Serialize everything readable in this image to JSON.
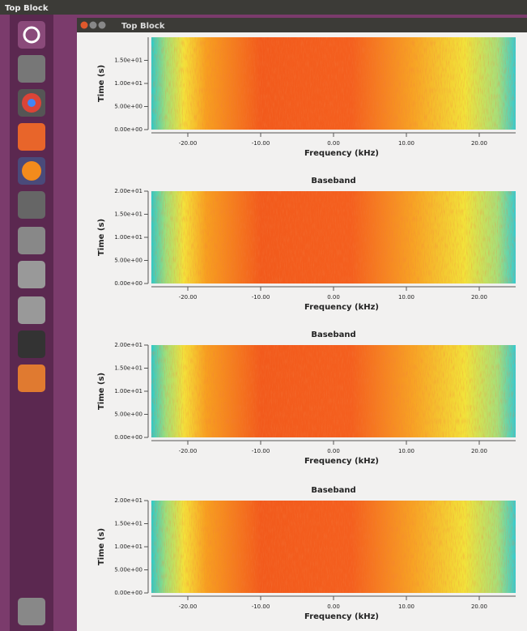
{
  "top_bar": {
    "title": "Top Block"
  },
  "window": {
    "title": "Top Block"
  },
  "plots": [
    {
      "x_label": "Frequency (kHz)",
      "y_label": "Time (s)",
      "xlim": [
        -25,
        25
      ],
      "ylim": [
        0,
        20
      ],
      "xticks": [
        {
          "value": -20,
          "label": "-20.00"
        },
        {
          "value": -10,
          "label": "-10.00"
        },
        {
          "value": 0,
          "label": "0.00"
        },
        {
          "value": 10,
          "label": "10.00"
        },
        {
          "value": 20,
          "label": "20.00"
        }
      ],
      "yticks": [
        {
          "value": 0,
          "label": "0.00e+00"
        },
        {
          "value": 5,
          "label": "5.00e+00"
        },
        {
          "value": 10,
          "label": "1.00e+01"
        },
        {
          "value": 15,
          "label": "1.50e+01"
        }
      ]
    },
    {
      "title": "Baseband",
      "x_label": "Frequency (kHz)",
      "y_label": "Time (s)",
      "xlim": [
        -25,
        25
      ],
      "ylim": [
        0,
        20
      ],
      "xticks": [
        {
          "value": -20,
          "label": "-20.00"
        },
        {
          "value": -10,
          "label": "-10.00"
        },
        {
          "value": 0,
          "label": "0.00"
        },
        {
          "value": 10,
          "label": "10.00"
        },
        {
          "value": 20,
          "label": "20.00"
        }
      ],
      "yticks": [
        {
          "value": 0,
          "label": "0.00e+00"
        },
        {
          "value": 5,
          "label": "5.00e+00"
        },
        {
          "value": 10,
          "label": "1.00e+01"
        },
        {
          "value": 15,
          "label": "1.50e+01"
        },
        {
          "value": 20,
          "label": "2.00e+01"
        }
      ]
    },
    {
      "title": "Baseband",
      "x_label": "Frequency (kHz)",
      "y_label": "Time (s)",
      "xlim": [
        -25,
        25
      ],
      "ylim": [
        0,
        20
      ],
      "xticks": [
        {
          "value": -20,
          "label": "-20.00"
        },
        {
          "value": -10,
          "label": "-10.00"
        },
        {
          "value": 0,
          "label": "0.00"
        },
        {
          "value": 10,
          "label": "10.00"
        },
        {
          "value": 20,
          "label": "20.00"
        }
      ],
      "yticks": [
        {
          "value": 0,
          "label": "0.00e+00"
        },
        {
          "value": 5,
          "label": "5.00e+00"
        },
        {
          "value": 10,
          "label": "1.00e+01"
        },
        {
          "value": 15,
          "label": "1.50e+01"
        },
        {
          "value": 20,
          "label": "2.00e+01"
        }
      ]
    },
    {
      "title": "Baseband",
      "x_label": "Frequency (kHz)",
      "y_label": "Time (s)",
      "xlim": [
        -25,
        25
      ],
      "ylim": [
        0,
        20
      ],
      "xticks": [
        {
          "value": -20,
          "label": "-20.00"
        },
        {
          "value": -10,
          "label": "-10.00"
        },
        {
          "value": 0,
          "label": "0.00"
        },
        {
          "value": 10,
          "label": "10.00"
        },
        {
          "value": 20,
          "label": "20.00"
        }
      ],
      "yticks": [
        {
          "value": 0,
          "label": "0.00e+00"
        },
        {
          "value": 5,
          "label": "5.00e+00"
        },
        {
          "value": 10,
          "label": "1.00e+01"
        },
        {
          "value": 15,
          "label": "1.50e+01"
        },
        {
          "value": 20,
          "label": "2.00e+01"
        }
      ]
    }
  ]
}
